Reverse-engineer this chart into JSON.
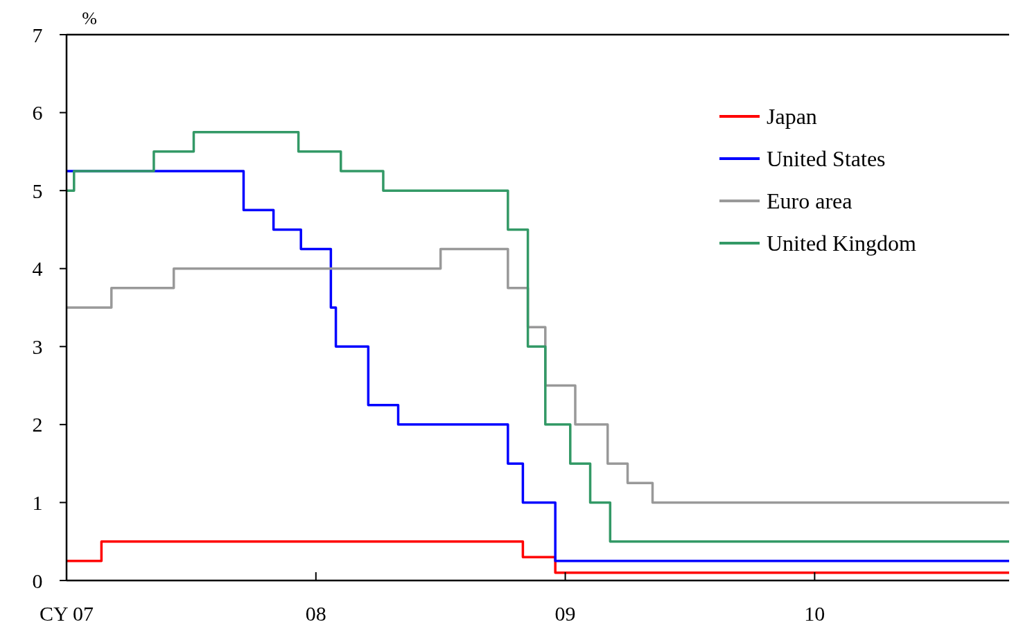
{
  "chart_data": {
    "type": "step",
    "ylabel": "%",
    "xlim": [
      2007,
      2010.78
    ],
    "xticks": [
      {
        "value": 2007,
        "label": "CY 07"
      },
      {
        "value": 2008,
        "label": "08"
      },
      {
        "value": 2009,
        "label": "09"
      },
      {
        "value": 2010,
        "label": "10"
      }
    ],
    "ylim": [
      0,
      7
    ],
    "yticks": [
      0,
      1,
      2,
      3,
      4,
      5,
      6,
      7
    ],
    "grid": false,
    "legend": "top right",
    "line_style": "solid",
    "series": [
      {
        "name": "Japan",
        "color": "#ff0000",
        "x": [
          2007,
          2007.14,
          2008.83,
          2008.96,
          2010.78
        ],
        "values": [
          0.25,
          0.5,
          0.3,
          0.1,
          0.1
        ]
      },
      {
        "name": "United States",
        "color": "#0000ff",
        "x": [
          2007,
          2007.71,
          2007.83,
          2007.94,
          2008.06,
          2008.08,
          2008.21,
          2008.33,
          2008.77,
          2008.83,
          2008.96,
          2010.78
        ],
        "values": [
          5.25,
          4.75,
          4.5,
          4.25,
          3.5,
          3.0,
          2.25,
          2.0,
          1.5,
          1.0,
          0.25,
          0.25
        ]
      },
      {
        "name": "Euro area",
        "color": "#999999",
        "x": [
          2007,
          2007.18,
          2007.43,
          2008.5,
          2008.77,
          2008.85,
          2008.92,
          2009.04,
          2009.17,
          2009.25,
          2009.35,
          2010.78
        ],
        "values": [
          3.5,
          3.75,
          4.0,
          4.25,
          3.75,
          3.25,
          2.5,
          2.0,
          1.5,
          1.25,
          1.0,
          1.0
        ]
      },
      {
        "name": "United Kingdom",
        "color": "#339966",
        "x": [
          2007,
          2007.03,
          2007.35,
          2007.51,
          2007.93,
          2008.1,
          2008.27,
          2008.77,
          2008.85,
          2008.92,
          2009.02,
          2009.1,
          2009.18,
          2010.78
        ],
        "values": [
          5.0,
          5.25,
          5.5,
          5.75,
          5.5,
          5.25,
          5.0,
          4.5,
          3.0,
          2.0,
          1.5,
          1.0,
          0.5,
          0.5
        ]
      }
    ]
  }
}
